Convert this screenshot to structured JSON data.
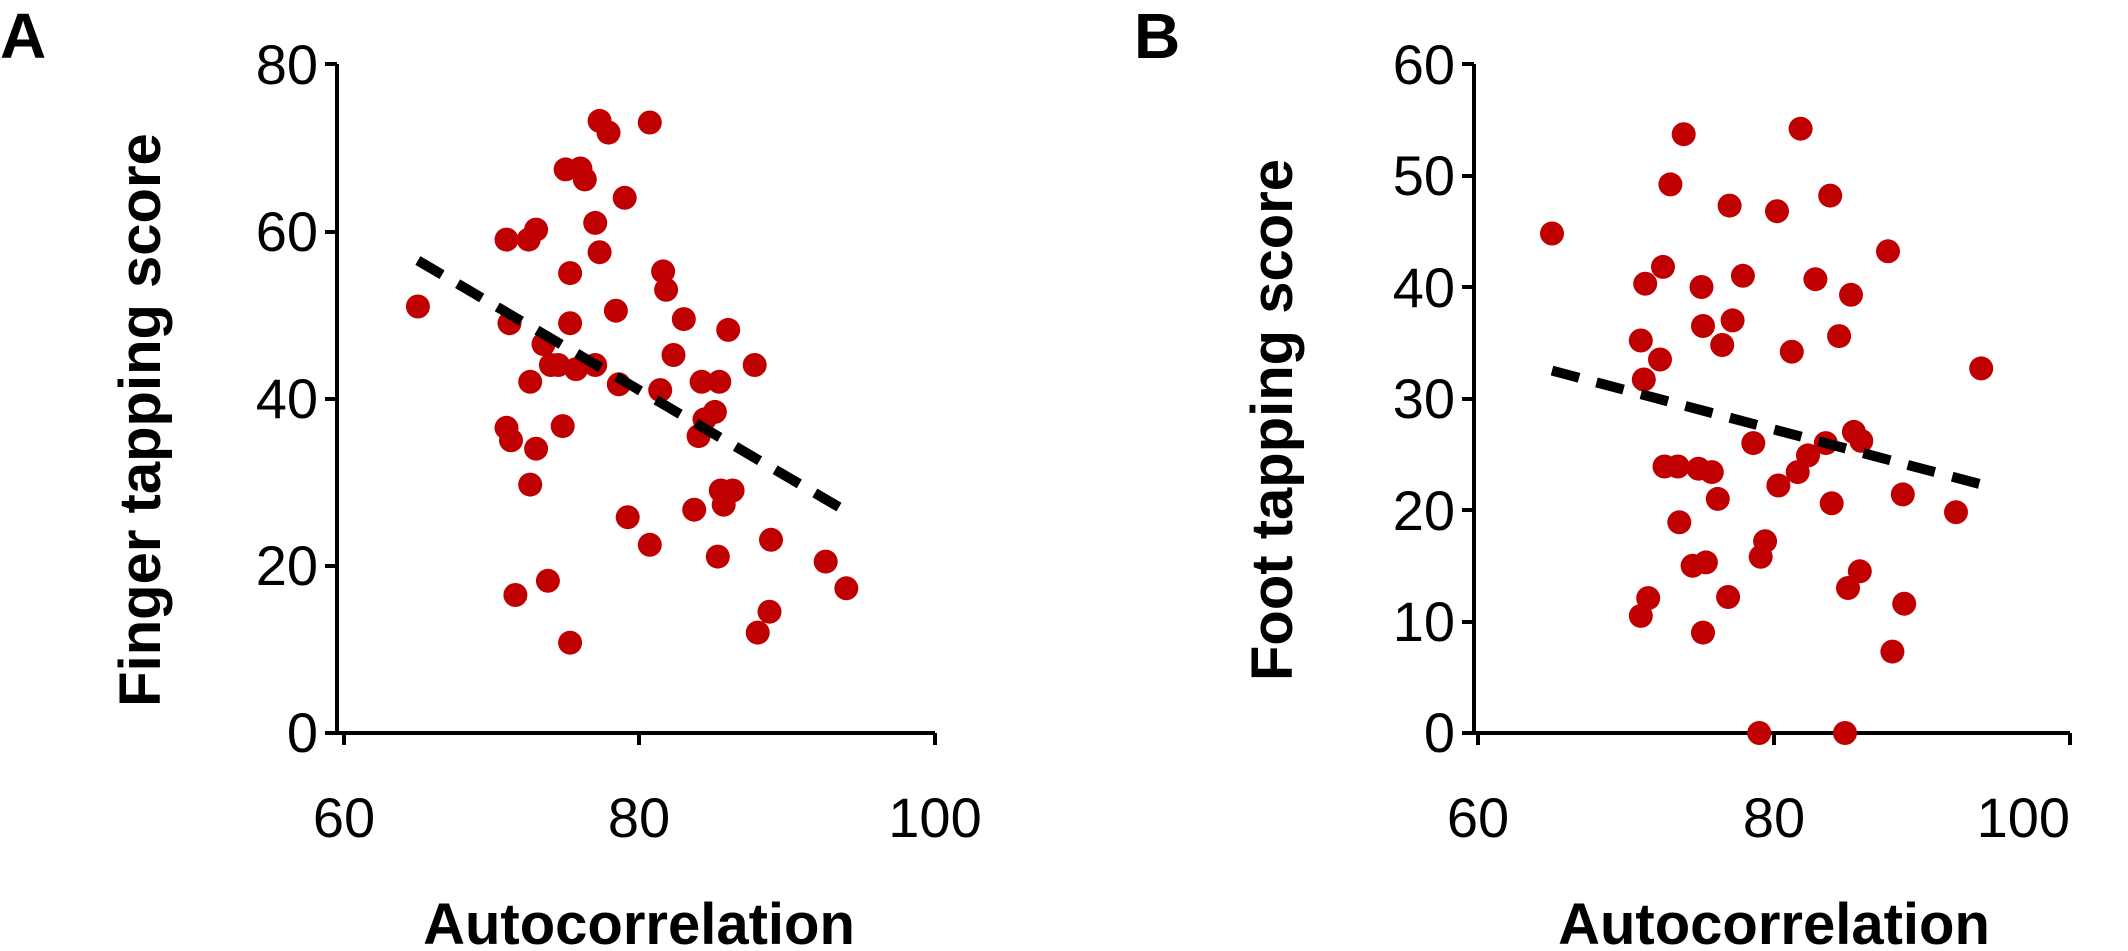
{
  "colors": {
    "points": "#c00000",
    "trend": "#000000",
    "axes": "#000000"
  },
  "chart_data": [
    {
      "panel": "A",
      "type": "scatter",
      "xlabel": "Autocorrelation",
      "ylabel": "Finger tapping score",
      "xlim": [
        60,
        100
      ],
      "ylim": [
        0,
        80
      ],
      "xticks": [
        "60",
        "80",
        "100"
      ],
      "yticks": [
        "0",
        "20",
        "40",
        "60",
        "80"
      ],
      "grid": false,
      "trendline": {
        "style": "dashed",
        "x": [
          65,
          94
        ],
        "y": [
          56.5,
          26.5
        ]
      },
      "points": [
        [
          65,
          51
        ],
        [
          71,
          59
        ],
        [
          71,
          36.5
        ],
        [
          71.2,
          49
        ],
        [
          71.3,
          35
        ],
        [
          71.6,
          16.5
        ],
        [
          72.5,
          59
        ],
        [
          72.6,
          42
        ],
        [
          72.6,
          29.7
        ],
        [
          73,
          60.2
        ],
        [
          73,
          34
        ],
        [
          73.5,
          46.5
        ],
        [
          73.8,
          18.2
        ],
        [
          74,
          44
        ],
        [
          74.5,
          44
        ],
        [
          74.8,
          36.7
        ],
        [
          75,
          67.4
        ],
        [
          75.3,
          55
        ],
        [
          75.3,
          49
        ],
        [
          75.3,
          10.8
        ],
        [
          75.7,
          43.5
        ],
        [
          76,
          67.5
        ],
        [
          76.3,
          66.2
        ],
        [
          77,
          61
        ],
        [
          77,
          44
        ],
        [
          77.3,
          73.2
        ],
        [
          77.3,
          57.5
        ],
        [
          77.9,
          71.8
        ],
        [
          78.4,
          50.5
        ],
        [
          78.6,
          41.7
        ],
        [
          79,
          64
        ],
        [
          79.2,
          25.8
        ],
        [
          80.7,
          22.5
        ],
        [
          80.7,
          73
        ],
        [
          81.4,
          41
        ],
        [
          81.6,
          55.2
        ],
        [
          81.8,
          53
        ],
        [
          82.3,
          45.2
        ],
        [
          83,
          49.5
        ],
        [
          83.7,
          26.7
        ],
        [
          84,
          35.5
        ],
        [
          84.2,
          42
        ],
        [
          84.4,
          37.5
        ],
        [
          85.1,
          38.4
        ],
        [
          85.3,
          21.1
        ],
        [
          85.4,
          42
        ],
        [
          85.5,
          29
        ],
        [
          85.7,
          27.3
        ],
        [
          86,
          48.2
        ],
        [
          86.3,
          29
        ],
        [
          87.8,
          44
        ],
        [
          88,
          12
        ],
        [
          88.8,
          14.5
        ],
        [
          88.9,
          23.1
        ],
        [
          92.6,
          20.5
        ],
        [
          94,
          17.3
        ]
      ]
    },
    {
      "panel": "B",
      "type": "scatter",
      "xlabel": "Autocorrelation",
      "ylabel": "Foot tapping score",
      "xlim": [
        60,
        100
      ],
      "ylim": [
        0,
        60
      ],
      "xticks": [
        "60",
        "80",
        "100"
      ],
      "yticks": [
        "0",
        "10",
        "20",
        "30",
        "40",
        "50",
        "60"
      ],
      "grid": false,
      "trendline": {
        "style": "dashed",
        "x": [
          65,
          94
        ],
        "y": [
          32.5,
          22.3
        ]
      },
      "points": [
        [
          65,
          44.8
        ],
        [
          71,
          35.2
        ],
        [
          71,
          10.5
        ],
        [
          71.2,
          31.7
        ],
        [
          71.3,
          40.3
        ],
        [
          71.5,
          12.1
        ],
        [
          72.3,
          33.5
        ],
        [
          72.5,
          41.8
        ],
        [
          72.6,
          23.9
        ],
        [
          73,
          49.2
        ],
        [
          73.5,
          23.9
        ],
        [
          73.6,
          18.9
        ],
        [
          73.9,
          53.7
        ],
        [
          74.5,
          15
        ],
        [
          74.9,
          23.7
        ],
        [
          75.1,
          40
        ],
        [
          75.2,
          36.5
        ],
        [
          75.2,
          9
        ],
        [
          75.4,
          15.3
        ],
        [
          75.8,
          23.4
        ],
        [
          76.2,
          21
        ],
        [
          76.5,
          34.8
        ],
        [
          76.9,
          12.2
        ],
        [
          77,
          47.3
        ],
        [
          77.2,
          37
        ],
        [
          77.9,
          41
        ],
        [
          78.6,
          26
        ],
        [
          79,
          0
        ],
        [
          79.1,
          15.8
        ],
        [
          79.4,
          17.2
        ],
        [
          80.2,
          46.8
        ],
        [
          80.3,
          22.2
        ],
        [
          81.2,
          34.2
        ],
        [
          81.6,
          23.4
        ],
        [
          81.8,
          54.2
        ],
        [
          82.3,
          24.9
        ],
        [
          82.8,
          40.7
        ],
        [
          83.5,
          26
        ],
        [
          83.8,
          48.2
        ],
        [
          83.9,
          20.6
        ],
        [
          84.4,
          35.6
        ],
        [
          84.8,
          0
        ],
        [
          85,
          13
        ],
        [
          85.2,
          39.3
        ],
        [
          85.4,
          27
        ],
        [
          85.8,
          14.5
        ],
        [
          85.9,
          26.2
        ],
        [
          87.7,
          43.2
        ],
        [
          88,
          7.3
        ],
        [
          88.7,
          21.4
        ],
        [
          88.8,
          11.6
        ],
        [
          92.3,
          19.8
        ],
        [
          94,
          32.7
        ]
      ]
    }
  ]
}
